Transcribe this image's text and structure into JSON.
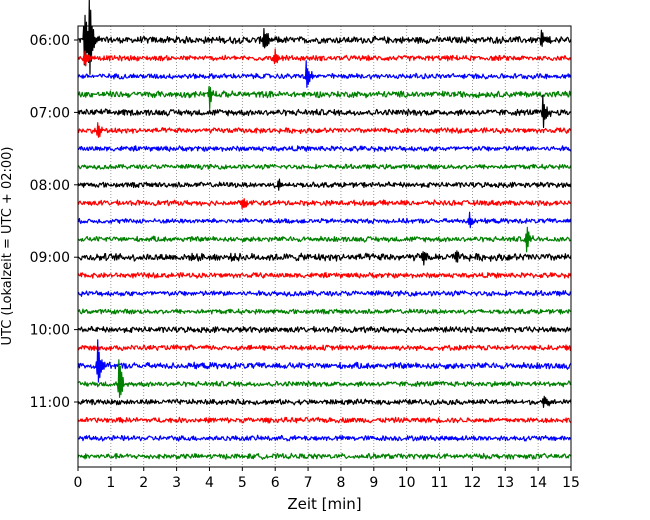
{
  "chart_data": {
    "type": "line",
    "subtype": "helicorder",
    "title": "",
    "xlabel": "Zeit  [min]",
    "ylabel": "UTC (Lokalzeit = UTC + 02:00)",
    "x_ticks": [
      "0",
      "1",
      "2",
      "3",
      "4",
      "5",
      "6",
      "7",
      "8",
      "9",
      "10",
      "11",
      "12",
      "13",
      "14",
      "15"
    ],
    "xlim": [
      0,
      15
    ],
    "y_ticks": [
      {
        "label": "06:00",
        "row": 0
      },
      {
        "label": "07:00",
        "row": 4
      },
      {
        "label": "08:00",
        "row": 8
      },
      {
        "label": "09:00",
        "row": 12
      },
      {
        "label": "10:00",
        "row": 16
      },
      {
        "label": "11:00",
        "row": 20
      }
    ],
    "trace_row_count": 24,
    "row_start_times": [
      "06:00",
      "06:15",
      "06:30",
      "06:45",
      "07:00",
      "07:15",
      "07:30",
      "07:45",
      "08:00",
      "08:15",
      "08:30",
      "08:45",
      "09:00",
      "09:15",
      "09:30",
      "09:45",
      "10:00",
      "10:15",
      "10:30",
      "10:45",
      "11:00",
      "11:15",
      "11:30",
      "11:45"
    ],
    "row_duration_min": 15,
    "grid": "vertical dotted at each minute",
    "colors": {
      "cycle": [
        "#000000",
        "#ff0000",
        "#0000ff",
        "#008000"
      ],
      "grid": "#808080",
      "axes": "#000000"
    },
    "noise_amplitude_rel": [
      0.13,
      0.1,
      0.1,
      0.12,
      0.12,
      0.1,
      0.1,
      0.09,
      0.1,
      0.1,
      0.09,
      0.1,
      0.14,
      0.1,
      0.1,
      0.09,
      0.11,
      0.1,
      0.12,
      0.1,
      0.1,
      0.1,
      0.1,
      0.1
    ],
    "events": [
      {
        "row": 0,
        "minute": 0.35,
        "amplitude_rel": 1.5,
        "note": "large spike"
      },
      {
        "row": 0,
        "minute": 0.2,
        "amplitude_rel": 1.3
      },
      {
        "row": 0,
        "minute": 5.65,
        "amplitude_rel": 0.5
      },
      {
        "row": 0,
        "minute": 14.1,
        "amplitude_rel": 0.3
      },
      {
        "row": 1,
        "minute": 0.2,
        "amplitude_rel": 0.35
      },
      {
        "row": 1,
        "minute": 6.0,
        "amplitude_rel": 0.25
      },
      {
        "row": 2,
        "minute": 6.95,
        "amplitude_rel": 0.55
      },
      {
        "row": 3,
        "minute": 4.0,
        "amplitude_rel": 0.45
      },
      {
        "row": 4,
        "minute": 14.15,
        "amplitude_rel": 0.6
      },
      {
        "row": 5,
        "minute": 0.6,
        "amplitude_rel": 0.3
      },
      {
        "row": 8,
        "minute": 6.1,
        "amplitude_rel": 0.25
      },
      {
        "row": 9,
        "minute": 5.0,
        "amplitude_rel": 0.25
      },
      {
        "row": 10,
        "minute": 11.9,
        "amplitude_rel": 0.3
      },
      {
        "row": 11,
        "minute": 13.65,
        "amplitude_rel": 0.55
      },
      {
        "row": 12,
        "minute": 10.5,
        "amplitude_rel": 0.3
      },
      {
        "row": 12,
        "minute": 11.5,
        "amplitude_rel": 0.25
      },
      {
        "row": 18,
        "minute": 0.6,
        "amplitude_rel": 0.9
      },
      {
        "row": 19,
        "minute": 1.25,
        "amplitude_rel": 0.9
      },
      {
        "row": 20,
        "minute": 14.15,
        "amplitude_rel": 0.3
      }
    ]
  }
}
